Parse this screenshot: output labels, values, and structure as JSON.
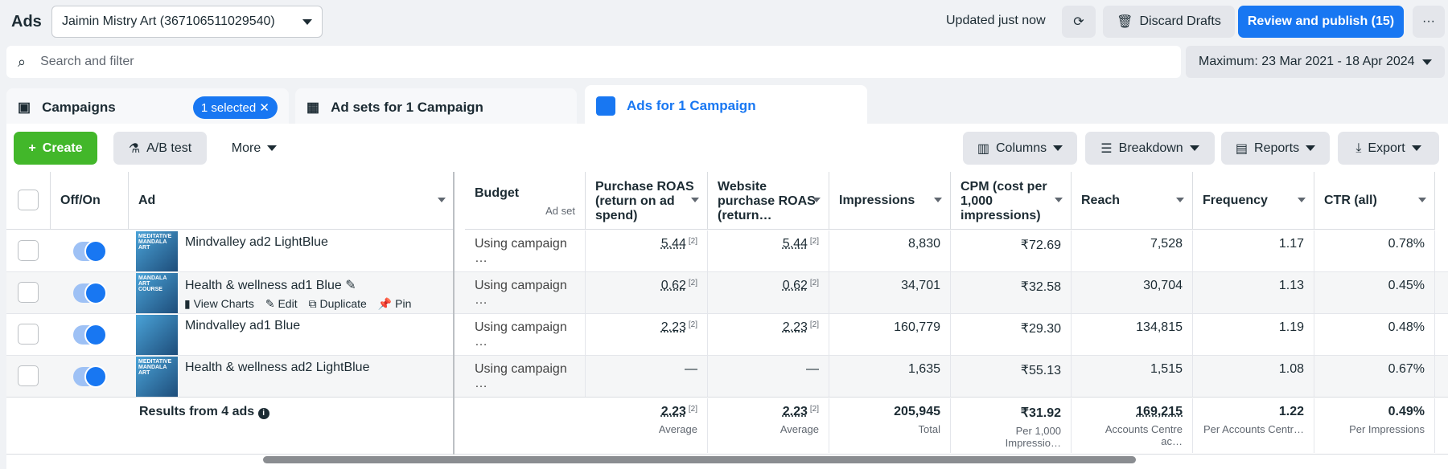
{
  "topbar": {
    "title": "Ads",
    "account": "Jaimin Mistry Art (367106511029540)",
    "updated": "Updated just now",
    "discard": "Discard Drafts",
    "publish": "Review and publish (15)",
    "more": "···"
  },
  "search": {
    "placeholder": "Search and filter"
  },
  "date_range": "Maximum: 23 Mar 2021 - 18 Apr 2024",
  "tabs": [
    {
      "label": "Campaigns",
      "badge": "1 selected"
    },
    {
      "label": "Ad sets for 1 Campaign"
    },
    {
      "label": "Ads for 1 Campaign"
    }
  ],
  "toolbar": {
    "create": "Create",
    "ab_test": "A/B test",
    "more": "More",
    "columns": "Columns",
    "breakdown": "Breakdown",
    "reports": "Reports",
    "export": "Export"
  },
  "headers": {
    "onoff": "Off/On",
    "ad": "Ad",
    "budget": "Budget",
    "budget_sub": "Ad set",
    "roas": "Purchase ROAS (return on ad spend)",
    "web_roas": "Website purchase ROAS (return…",
    "impressions": "Impressions",
    "cpm": "CPM (cost per 1,000 impressions)",
    "reach": "Reach",
    "frequency": "Frequency",
    "ctr": "CTR (all)"
  },
  "row_actions": {
    "view_charts": "View Charts",
    "edit": "Edit",
    "duplicate": "Duplicate",
    "pin": "Pin"
  },
  "rows": [
    {
      "name": "Mindvalley ad2 LightBlue",
      "budget": "Using campaign …",
      "roas": "5.44",
      "web_roas": "5.44",
      "impressions": "8,830",
      "cpm": "₹72.69",
      "reach": "7,528",
      "frequency": "1.17",
      "ctr": "0.78%",
      "thumb": "MEDITATIVE MANDALA ART"
    },
    {
      "name": "Health & wellness ad1 Blue",
      "budget": "Using campaign …",
      "roas": "0.62",
      "web_roas": "0.62",
      "impressions": "34,701",
      "cpm": "₹32.58",
      "reach": "30,704",
      "frequency": "1.13",
      "ctr": "0.45%",
      "thumb": "MANDALA ART COURSE"
    },
    {
      "name": "Mindvalley ad1 Blue",
      "budget": "Using campaign …",
      "roas": "2.23",
      "web_roas": "2.23",
      "impressions": "160,779",
      "cpm": "₹29.30",
      "reach": "134,815",
      "frequency": "1.19",
      "ctr": "0.48%",
      "thumb": ""
    },
    {
      "name": "Health & wellness ad2 LightBlue",
      "budget": "Using campaign …",
      "roas": "—",
      "web_roas": "—",
      "impressions": "1,635",
      "cpm": "₹55.13",
      "reach": "1,515",
      "frequency": "1.08",
      "ctr": "0.67%",
      "thumb": "MEDITATIVE MANDALA ART"
    }
  ],
  "sup": "[2]",
  "totals": {
    "label": "Results from 4 ads",
    "roas": "2.23",
    "roas_sub": "Average",
    "web_roas": "2.23",
    "web_roas_sub": "Average",
    "impressions": "205,945",
    "impressions_sub": "Total",
    "cpm": "₹31.92",
    "cpm_sub": "Per 1,000 Impressio…",
    "reach": "169,215",
    "reach_sub": "Accounts Centre ac…",
    "frequency": "1.22",
    "frequency_sub": "Per Accounts Centr…",
    "ctr": "0.49%",
    "ctr_sub": "Per Impressions"
  }
}
